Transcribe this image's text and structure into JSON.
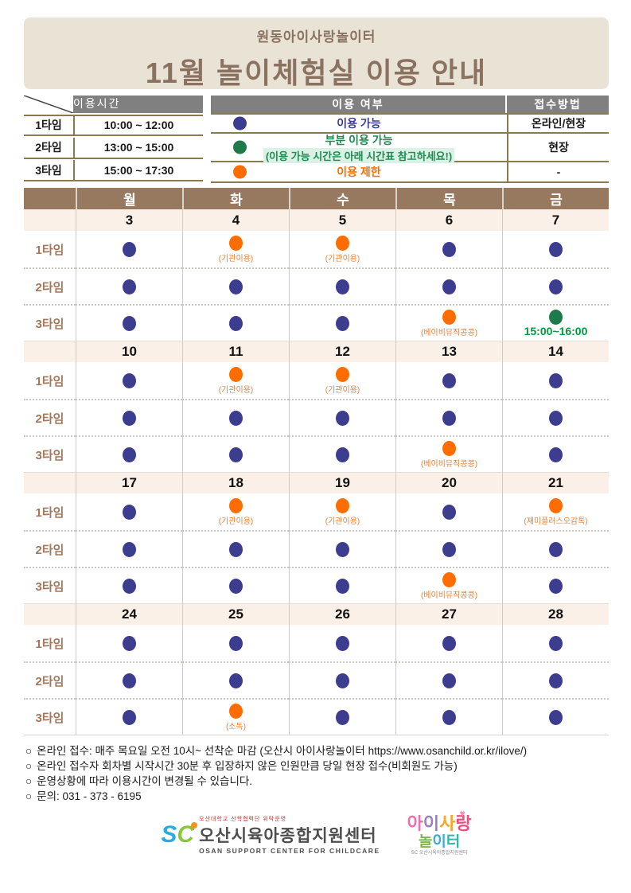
{
  "header": {
    "org": "원동아이사랑놀이터",
    "title": "11월  놀이체험실  이용  안내"
  },
  "time_table": {
    "header": "이용시간",
    "rows": [
      {
        "label": "1타임",
        "time": "10:00 ~ 12:00"
      },
      {
        "label": "2타임",
        "time": "13:00 ~ 15:00"
      },
      {
        "label": "3타임",
        "time": "15:00 ~ 17:30"
      }
    ]
  },
  "legend": {
    "header": "이용 여부",
    "register_header": "접수방법",
    "rows": [
      {
        "dot": "blue",
        "label": "이용 가능",
        "register": "온라인/현장"
      },
      {
        "dot": "green",
        "label": "부분 이용 가능",
        "note": "(이용 가능 시간은 아래 시간표 참고하세요!)",
        "register": "현장"
      },
      {
        "dot": "orange",
        "label": "이용 제한",
        "register": "-"
      }
    ]
  },
  "calendar": {
    "day_headers": [
      "월",
      "화",
      "수",
      "목",
      "금"
    ],
    "time_labels": [
      "1타임",
      "2타임",
      "3타임"
    ],
    "weeks": [
      {
        "dates": [
          "3",
          "4",
          "5",
          "6",
          "7"
        ],
        "rows": [
          [
            {
              "dot": "blue"
            },
            {
              "dot": "orange",
              "note": "(기관이용)"
            },
            {
              "dot": "orange",
              "note": "(기관이용)"
            },
            {
              "dot": "blue"
            },
            {
              "dot": "blue"
            }
          ],
          [
            {
              "dot": "blue"
            },
            {
              "dot": "blue"
            },
            {
              "dot": "blue"
            },
            {
              "dot": "blue"
            },
            {
              "dot": "blue"
            }
          ],
          [
            {
              "dot": "blue"
            },
            {
              "dot": "blue"
            },
            {
              "dot": "blue"
            },
            {
              "dot": "orange",
              "note": "(베이비뮤직콩콩)"
            },
            {
              "dot": "green",
              "note": "15:00~16:00",
              "note_style": "green-time"
            }
          ]
        ]
      },
      {
        "dates": [
          "10",
          "11",
          "12",
          "13",
          "14"
        ],
        "rows": [
          [
            {
              "dot": "blue"
            },
            {
              "dot": "orange",
              "note": "(기관이용)"
            },
            {
              "dot": "orange",
              "note": "(기관이용)"
            },
            {
              "dot": "blue"
            },
            {
              "dot": "blue"
            }
          ],
          [
            {
              "dot": "blue"
            },
            {
              "dot": "blue"
            },
            {
              "dot": "blue"
            },
            {
              "dot": "blue"
            },
            {
              "dot": "blue"
            }
          ],
          [
            {
              "dot": "blue"
            },
            {
              "dot": "blue"
            },
            {
              "dot": "blue"
            },
            {
              "dot": "orange",
              "note": "(베이비뮤직콩콩)"
            },
            {
              "dot": "blue"
            }
          ]
        ]
      },
      {
        "dates": [
          "17",
          "18",
          "19",
          "20",
          "21"
        ],
        "rows": [
          [
            {
              "dot": "blue"
            },
            {
              "dot": "orange",
              "note": "(기관이용)"
            },
            {
              "dot": "orange",
              "note": "(기관이용)"
            },
            {
              "dot": "blue"
            },
            {
              "dot": "orange",
              "note": "(재미플러스오감톡)"
            }
          ],
          [
            {
              "dot": "blue"
            },
            {
              "dot": "blue"
            },
            {
              "dot": "blue"
            },
            {
              "dot": "blue"
            },
            {
              "dot": "blue"
            }
          ],
          [
            {
              "dot": "blue"
            },
            {
              "dot": "blue"
            },
            {
              "dot": "blue"
            },
            {
              "dot": "orange",
              "note": "(베이비뮤직콩콩)"
            },
            {
              "dot": "blue"
            }
          ]
        ]
      },
      {
        "dates": [
          "24",
          "25",
          "26",
          "27",
          "28"
        ],
        "rows": [
          [
            {
              "dot": "blue"
            },
            {
              "dot": "blue"
            },
            {
              "dot": "blue"
            },
            {
              "dot": "blue"
            },
            {
              "dot": "blue"
            }
          ],
          [
            {
              "dot": "blue"
            },
            {
              "dot": "blue"
            },
            {
              "dot": "blue"
            },
            {
              "dot": "blue"
            },
            {
              "dot": "blue"
            }
          ],
          [
            {
              "dot": "blue"
            },
            {
              "dot": "orange",
              "note": "(소독)"
            },
            {
              "dot": "blue"
            },
            {
              "dot": "blue"
            },
            {
              "dot": "blue"
            }
          ]
        ]
      }
    ]
  },
  "footnotes": [
    {
      "bullet": "○",
      "text": "온라인 접수: 매주 목요일 오전 10시~ 선착순 마감 (오산시 아이사랑놀이터  https://www.osanchild.or.kr/ilove/)"
    },
    {
      "bullet": "○",
      "text": "온라인 접수자 회차별 시작시간 30분 후 입장하지 않은 인원만큼 당일 현장 접수(비회원도 가능)"
    },
    {
      "bullet": "○",
      "text": "운영상황에 따라 이용시간이 변경될 수 있습니다."
    },
    {
      "bullet": "○",
      "text": "문의: 031 - 373 - 6195"
    }
  ],
  "logos": {
    "left": {
      "mark": "SC",
      "tagline": "오산대학교 산학협력단 위탁운영",
      "name": "오산시육아종합지원센터",
      "sub": "OSAN SUPPORT CENTER FOR CHILDCARE"
    },
    "right": {
      "line1": "아이사랑",
      "line2": "놀이터",
      "heart": "♥",
      "sub": "SC 오산시육아종합지원센터"
    }
  },
  "colors": {
    "available_dot": "#3d3d8f",
    "partial_dot": "#1f7a4b",
    "restricted_dot": "#ff6d00",
    "banner_bg": "#e9e3d6",
    "banner_text": "#8a7160",
    "header_gray": "#808080",
    "table_line_olive": "#8a7a50",
    "calendar_header_bg": "#96795f",
    "date_row_bg": "#faf0e8",
    "time_label_brown": "#a1785c",
    "annotation_orange": "#e08340",
    "green_time_text": "#009a3e",
    "note_highlight_mint": "#d9f2e5"
  }
}
